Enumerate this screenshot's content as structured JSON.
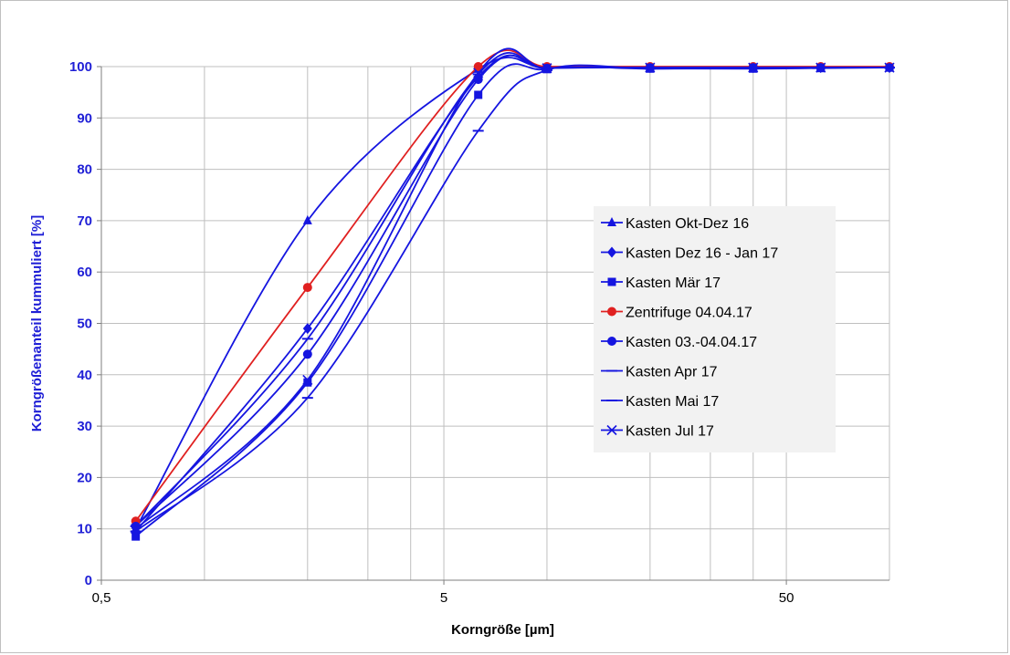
{
  "chart_data": {
    "type": "line",
    "xscale": "log",
    "xlabel": "Korngröße [µm]",
    "ylabel": "Korngrößenanteil kummuliert [%]",
    "xlim": [
      0.5,
      100
    ],
    "ylim": [
      0,
      100
    ],
    "x_ticks": [
      0.5,
      5,
      50
    ],
    "x_tick_labels": [
      "0,5",
      "5",
      "50"
    ],
    "x_minor_gridlines": [
      1,
      2,
      3,
      4,
      10,
      20,
      30,
      40
    ],
    "y_ticks": [
      0,
      10,
      20,
      30,
      40,
      50,
      60,
      70,
      80,
      90,
      100
    ],
    "y_tick_labels": [
      "0",
      "10",
      "20",
      "30",
      "40",
      "50",
      "60",
      "70",
      "80",
      "90",
      "100"
    ],
    "grid": true,
    "legend_position": "right",
    "x": [
      0.63,
      2,
      6.3,
      10,
      20,
      40,
      63,
      100
    ],
    "series": [
      {
        "name": "Kasten Okt-Dez 16",
        "marker": "triangle",
        "color": "#1515e0",
        "values": [
          10,
          70,
          99.5,
          99.8,
          99.8,
          99.8,
          99.8,
          99.8
        ]
      },
      {
        "name": "Kasten Dez 16 - Jan 17",
        "marker": "diamond",
        "color": "#1515e0",
        "values": [
          9.5,
          49,
          98,
          99.8,
          99.8,
          99.8,
          99.8,
          99.8
        ]
      },
      {
        "name": "Kasten Mär 17",
        "marker": "square",
        "color": "#1515e0",
        "values": [
          8.5,
          38.5,
          94.5,
          99.5,
          99.6,
          99.6,
          99.7,
          99.8
        ]
      },
      {
        "name": "Zentrifuge 04.04.17",
        "marker": "circle",
        "color": "#e02020",
        "values": [
          11.5,
          57,
          100,
          100,
          100,
          100,
          100,
          100
        ]
      },
      {
        "name": "Kasten 03.-04.04.17",
        "marker": "circle",
        "color": "#1515e0",
        "values": [
          10.5,
          44,
          97.5,
          99.7,
          99.8,
          99.8,
          99.8,
          99.8
        ]
      },
      {
        "name": "Kasten Apr 17",
        "marker": "dash",
        "color": "#1515e0",
        "values": [
          9.5,
          35.5,
          87.5,
          99.3,
          99.6,
          99.7,
          99.8,
          99.8
        ]
      },
      {
        "name": "Kasten Mai 17",
        "marker": "dash",
        "color": "#1515e0",
        "values": [
          10.5,
          47,
          98.5,
          99.7,
          99.8,
          99.8,
          99.8,
          99.8
        ]
      },
      {
        "name": "Kasten Jul 17",
        "marker": "x",
        "color": "#1515e0",
        "values": [
          10,
          39,
          98.8,
          99.7,
          99.8,
          99.8,
          99.8,
          99.8
        ]
      }
    ]
  }
}
